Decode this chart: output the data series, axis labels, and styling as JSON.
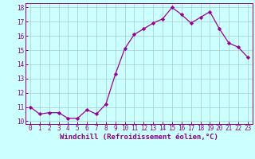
{
  "x": [
    0,
    1,
    2,
    3,
    4,
    5,
    6,
    7,
    8,
    9,
    10,
    11,
    12,
    13,
    14,
    15,
    16,
    17,
    18,
    19,
    20,
    21,
    22,
    23
  ],
  "y": [
    11.0,
    10.5,
    10.6,
    10.6,
    10.2,
    10.2,
    10.8,
    10.5,
    11.2,
    13.3,
    15.1,
    16.1,
    16.5,
    16.9,
    17.2,
    18.0,
    17.5,
    16.9,
    17.3,
    17.7,
    16.5,
    15.5,
    15.2,
    14.5
  ],
  "line_color": "#990099",
  "marker": "D",
  "marker_size": 2.2,
  "bg_color": "#ccffff",
  "grid_color": "#aacccc",
  "ylim": [
    9.8,
    18.3
  ],
  "yticks": [
    10,
    11,
    12,
    13,
    14,
    15,
    16,
    17,
    18
  ],
  "xticks": [
    0,
    1,
    2,
    3,
    4,
    5,
    6,
    7,
    8,
    9,
    10,
    11,
    12,
    13,
    14,
    15,
    16,
    17,
    18,
    19,
    20,
    21,
    22,
    23
  ],
  "tick_color": "#880088",
  "tick_fontsize": 5.5,
  "xlabel": "Windchill (Refroidissement éolien,°C)",
  "xlabel_fontsize": 6.5,
  "spine_color": "#880088"
}
